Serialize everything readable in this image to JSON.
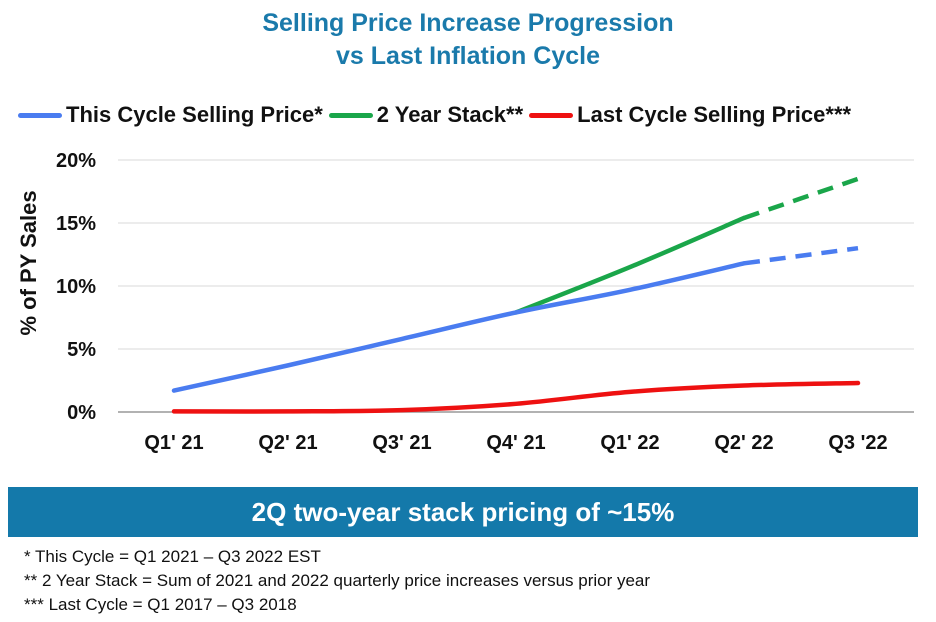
{
  "title_line1": "Selling Price Increase Progression",
  "title_line2": "vs Last Inflation Cycle",
  "banner_text": "2Q two-year stack pricing of ~15%",
  "footnotes": [
    "*   This Cycle = Q1 2021 – Q3 2022 EST",
    "**  2 Year Stack = Sum of 2021 and 2022 quarterly price increases versus prior year",
    "*** Last Cycle = Q1 2017 – Q3 2018"
  ],
  "chart_data": {
    "type": "line",
    "categories": [
      "Q1' 21",
      "Q2' 21",
      "Q3' 21",
      "Q4' 21",
      "Q1' 22",
      "Q2' 22",
      "Q3 '22"
    ],
    "ylabel": "% of PY Sales",
    "ylim": [
      0,
      20
    ],
    "yticks": [
      0,
      5,
      10,
      15,
      20
    ],
    "ytick_labels": [
      "0%",
      "5%",
      "10%",
      "15%",
      "20%"
    ],
    "grid": true,
    "legend_position": "top",
    "series": [
      {
        "name": "This Cycle Selling Price*",
        "color": "#4a7cf0",
        "values": [
          1.7,
          3.7,
          5.8,
          7.9,
          9.7,
          11.8,
          13.0
        ],
        "dashed_from_index": 5
      },
      {
        "name": "2 Year Stack**",
        "color": "#1aa64a",
        "values": [
          null,
          null,
          null,
          7.9,
          11.5,
          15.4,
          18.5
        ],
        "dashed_from_index": 5
      },
      {
        "name": "Last Cycle Selling Price***",
        "color": "#ee1111",
        "values": [
          0.05,
          0.05,
          0.15,
          0.65,
          1.6,
          2.1,
          2.3
        ],
        "dashed_from_index": null
      }
    ]
  }
}
